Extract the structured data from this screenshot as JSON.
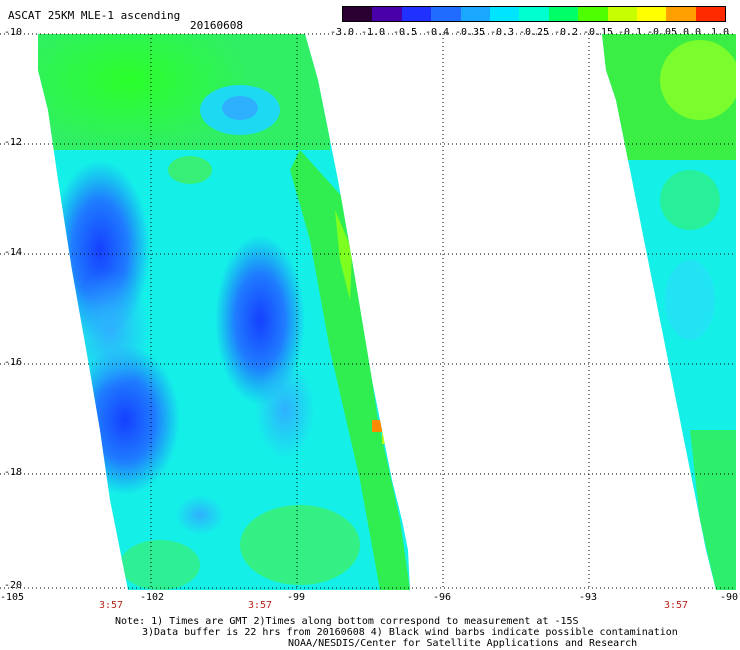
{
  "header": {
    "title": "ASCAT 25KM MLE-1 ascending",
    "date": "20160608"
  },
  "colorbar": {
    "labels": [
      "-3.0",
      "-1.0",
      "-0.5",
      "-0.4",
      "-0.35",
      "-0.3",
      "-0.25",
      "-0.2",
      "-0.15",
      "-0.1",
      "-0.05",
      "0.0",
      "1.0"
    ],
    "colors": [
      "#2a0033",
      "#4a00a8",
      "#2030ff",
      "#1f6cff",
      "#1aa8ff",
      "#00e5ff",
      "#00ffd0",
      "#00ff66",
      "#4dff00",
      "#c8ff00",
      "#ffff00",
      "#ffa000",
      "#ff2a00"
    ]
  },
  "map": {
    "x_ticks": [
      "-105",
      "-102",
      "-99",
      "-96",
      "-93",
      "-90"
    ],
    "y_ticks": [
      "-10",
      "-12",
      "-14",
      "-16",
      "-18",
      "-20"
    ],
    "pass_times": [
      "3:57",
      "3:57",
      "3:57"
    ],
    "pass_time_color": "#b8251a"
  },
  "notes": {
    "line1": "Note: 1) Times are GMT 2)Times along bottom correspond to measurement at -15S",
    "line2": "3)Data buffer is 22 hrs from 20160608 4) Black wind barbs indicate possible contamination",
    "line3": "NOAA/NESDIS/Center for Satellite Applications and Research"
  }
}
